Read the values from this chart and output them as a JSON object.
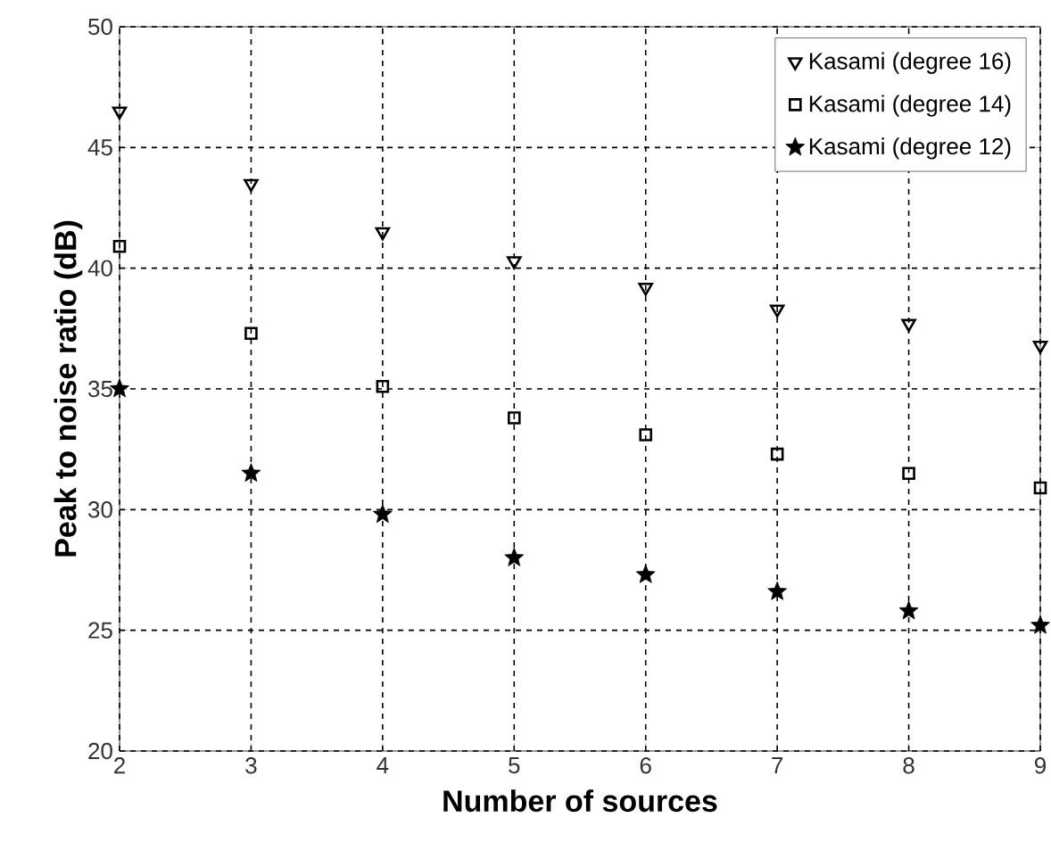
{
  "chart_data": {
    "type": "scatter",
    "xlabel": "Number of sources",
    "ylabel": "Peak to noise ratio (dB)",
    "x": [
      2,
      3,
      4,
      5,
      6,
      7,
      8,
      9
    ],
    "series": [
      {
        "name": "Kasami (degree 16)",
        "color": "#000000",
        "marker": "triangle",
        "values": [
          46.5,
          43.5,
          41.5,
          40.3,
          39.2,
          38.3,
          37.7,
          36.8
        ]
      },
      {
        "name": "Kasami (degree 14)",
        "color": "#000000",
        "marker": "square",
        "values": [
          40.9,
          37.3,
          35.1,
          33.8,
          33.1,
          32.3,
          31.5,
          30.9
        ]
      },
      {
        "name": "Kasami (degree 12)",
        "color": "#000000",
        "marker": "star",
        "values": [
          35.0,
          31.5,
          29.8,
          28.0,
          27.3,
          26.6,
          25.8,
          25.2
        ]
      }
    ],
    "xlim": [
      2,
      9
    ],
    "xticks": [
      2,
      3,
      4,
      5,
      6,
      7,
      8,
      9
    ],
    "ylim": [
      20,
      50
    ],
    "yticks": [
      20,
      25,
      30,
      35,
      40,
      45,
      50
    ],
    "grid": true,
    "legend": "top right"
  }
}
